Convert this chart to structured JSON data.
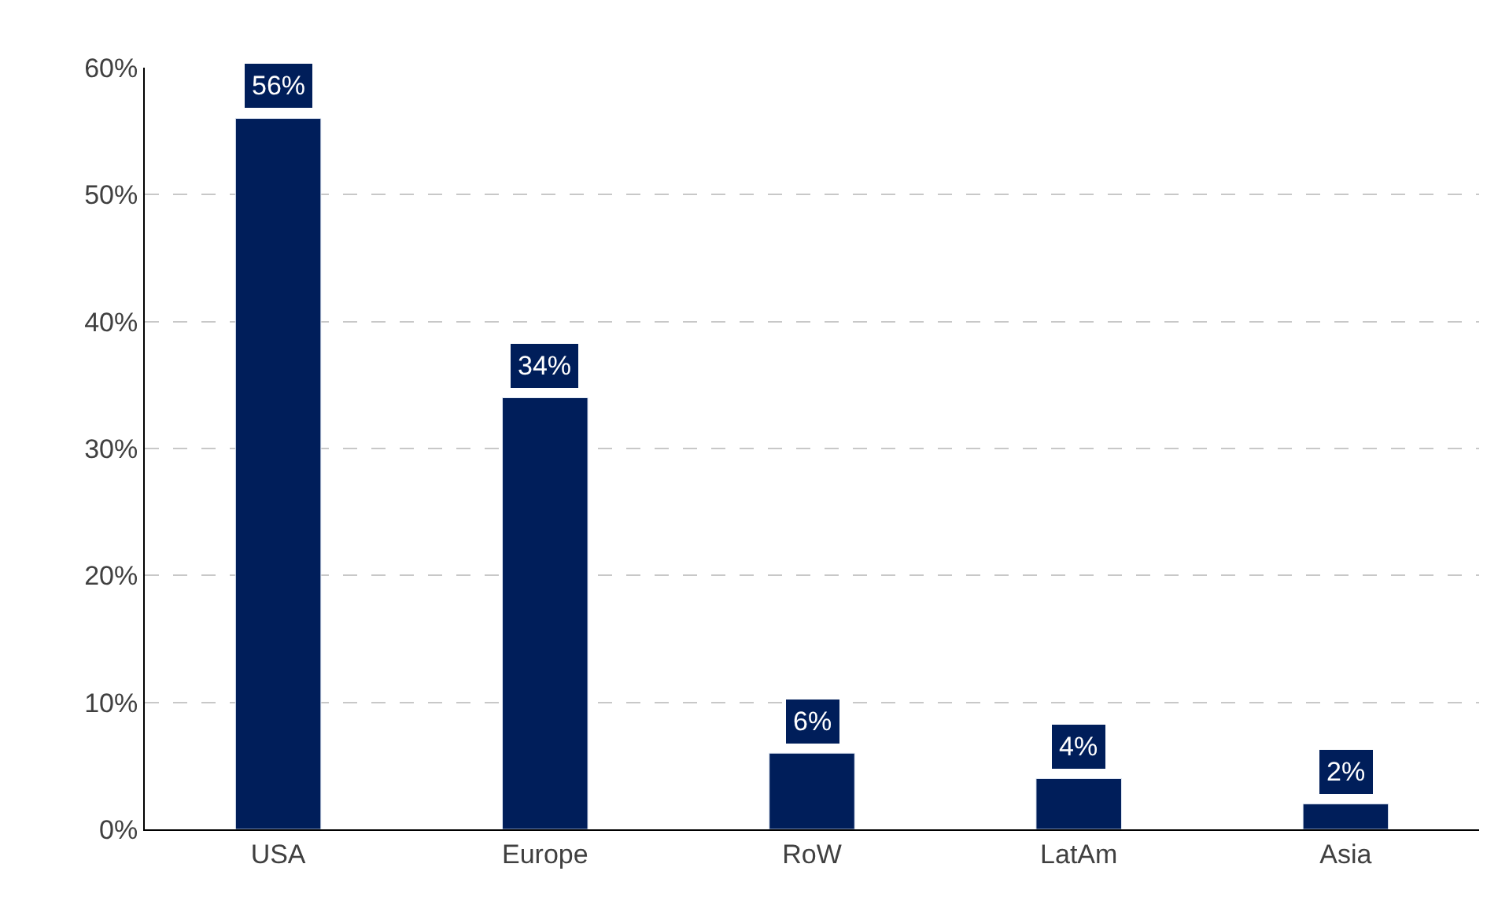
{
  "chart_data": {
    "type": "bar",
    "categories": [
      "USA",
      "Europe",
      "RoW",
      "LatAm",
      "Asia"
    ],
    "values": [
      56,
      34,
      6,
      4,
      2
    ],
    "value_labels": [
      "56%",
      "34%",
      "6%",
      "4%",
      "2%"
    ],
    "color": "#001e5a",
    "ylim": [
      0,
      60
    ],
    "yticks": [
      {
        "value": 0,
        "label": "0%"
      },
      {
        "value": 10,
        "label": "10%"
      },
      {
        "value": 20,
        "label": "20%"
      },
      {
        "value": 30,
        "label": "30%"
      },
      {
        "value": 40,
        "label": "40%"
      },
      {
        "value": 50,
        "label": "50%"
      },
      {
        "value": 60,
        "label": "60%"
      }
    ],
    "grid": "y"
  }
}
